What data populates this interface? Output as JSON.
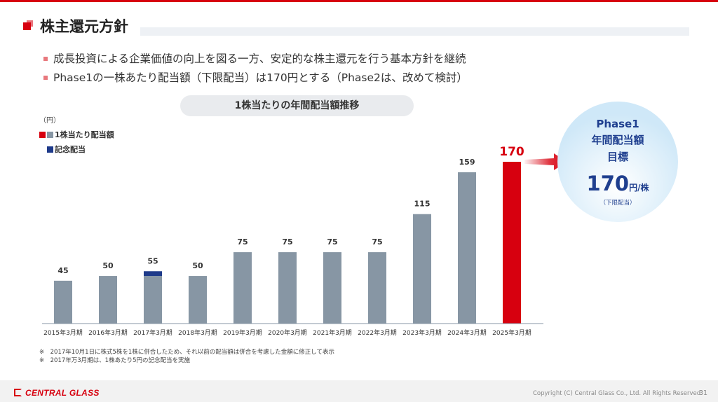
{
  "slide": {
    "title": "株主還元方針",
    "bullets": [
      "成長投資による企業価値の向上を図る一方、安定的な株主還元を行う基本方針を継続",
      "Phase1の一株あたり配当額（下限配当）は170円とする（Phase2は、改めて検討）"
    ],
    "notes": [
      "※　2017年10月1日に株式5株を1株に併合したため、それ以前の配当額は併合を考慮した金額に修正して表示",
      "※　2017年万3月期は、1株あたり5円の記念配当を実施"
    ]
  },
  "target_bubble": {
    "line1": "Phase1",
    "line2": "年間配当額",
    "line3": "目標",
    "value": "170",
    "unit": "円/株",
    "note": "（下限配当）"
  },
  "footer": {
    "logo_text": "CENTRAL GLASS",
    "copyright": "Copyright (C) Central Glass Co., Ltd. All Rights Reserved.",
    "page_number": "31"
  },
  "colors": {
    "accent_red": "#d7000f",
    "bar_gray": "#8796a4",
    "commemorative_blue": "#1e3a8a",
    "bubble_text_blue": "#1f3f8f"
  },
  "chart_data": {
    "type": "bar",
    "title": "1株当たりの年間配当額推移",
    "unit_label": "（円）",
    "categories": [
      "2015年3月期",
      "2016年3月期",
      "2017年3月期",
      "2018年3月期",
      "2019年3月期",
      "2020年3月期",
      "2021年3月期",
      "2022年3月期",
      "2023年3月期",
      "2024年3月期",
      "2025年3月期"
    ],
    "series": [
      {
        "name": "1株当たり配当額",
        "values": [
          45,
          50,
          50,
          50,
          75,
          75,
          75,
          75,
          115,
          159,
          170
        ]
      },
      {
        "name": "記念配当",
        "values": [
          0,
          0,
          5,
          0,
          0,
          0,
          0,
          0,
          0,
          0,
          0
        ]
      }
    ],
    "data_labels": [
      "45",
      "50",
      "55",
      "50",
      "75",
      "75",
      "75",
      "75",
      "115",
      "159",
      "170"
    ],
    "highlight_category": "2025年3月期",
    "stacked": true,
    "ylim": [
      0,
      170
    ],
    "grid": false,
    "legend": "top-left"
  }
}
